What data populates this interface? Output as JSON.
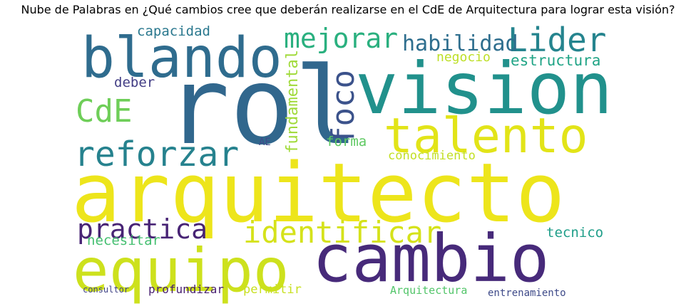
{
  "title": "Nube de Palabras en ¿Qué cambios cree que deberán realizarse en el CdE de Arquitectura para lograr esta visión?",
  "words": [
    {
      "text": "arquitecto",
      "color": "#ede51b"
    },
    {
      "text": "rol",
      "color": "#31678d"
    },
    {
      "text": "vision",
      "color": "#21918c"
    },
    {
      "text": "cambio",
      "color": "#472a7a"
    },
    {
      "text": "equipo",
      "color": "#cde11d"
    },
    {
      "text": "blando",
      "color": "#2f6c8e"
    },
    {
      "text": "talento",
      "color": "#e2e418"
    },
    {
      "text": "reforzar",
      "color": "#26828e"
    },
    {
      "text": "identificar",
      "color": "#d5e21a"
    },
    {
      "text": "Lider",
      "color": "#25848e"
    },
    {
      "text": "mejorar",
      "color": "#2ab07f"
    },
    {
      "text": "foco",
      "color": "#3b528b"
    },
    {
      "text": "CdE",
      "color": "#6ece58"
    },
    {
      "text": "practica",
      "color": "#482475"
    },
    {
      "text": "habilidad",
      "color": "#2e6e8e"
    },
    {
      "text": "fundamental",
      "color": "#a0da39"
    },
    {
      "text": "estructura",
      "color": "#20a486"
    },
    {
      "text": "capacidad",
      "color": "#2a788e"
    },
    {
      "text": "negocio",
      "color": "#bddf26"
    },
    {
      "text": "deber",
      "color": "#433e85"
    },
    {
      "text": "forma",
      "color": "#5ec962"
    },
    {
      "text": "AE",
      "color": "#3e4989"
    },
    {
      "text": "conocimiento",
      "color": "#c2df23"
    },
    {
      "text": "necesitar",
      "color": "#44bf70"
    },
    {
      "text": "tecnico",
      "color": "#1f9e89"
    },
    {
      "text": "permitir",
      "color": "#c8e020"
    },
    {
      "text": "profundizar",
      "color": "#481f70"
    },
    {
      "text": "consultor",
      "color": "#414487"
    },
    {
      "text": "Arquitectura",
      "color": "#52c569"
    },
    {
      "text": "entrenamiento",
      "color": "#3e4a89"
    }
  ]
}
